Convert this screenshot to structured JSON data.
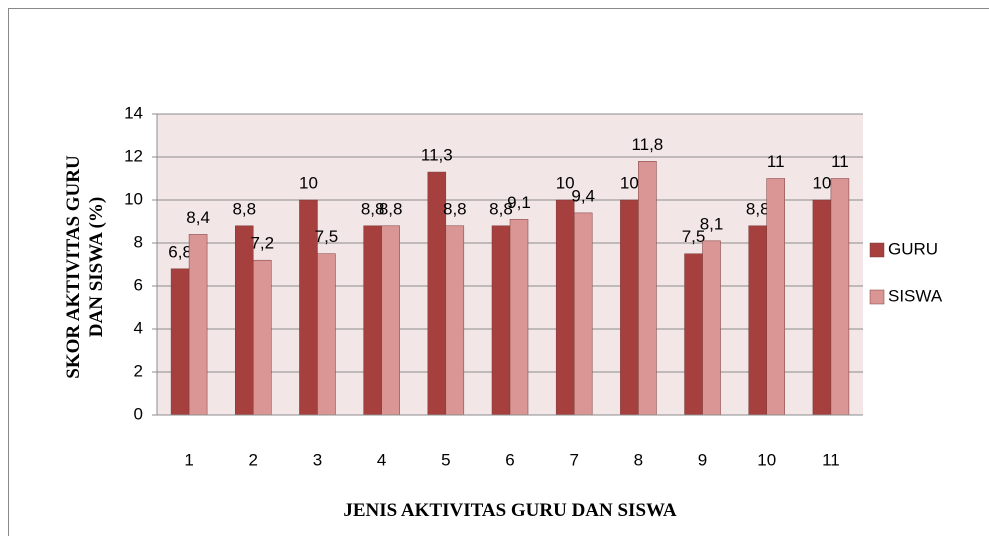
{
  "chart_data": {
    "type": "bar",
    "categories": [
      "1",
      "2",
      "3",
      "4",
      "5",
      "6",
      "7",
      "8",
      "9",
      "10",
      "11"
    ],
    "series": [
      {
        "name": "GURU",
        "color": "#a5403e",
        "values": [
          6.8,
          8.8,
          10,
          8.8,
          11.3,
          8.8,
          10,
          10,
          7.5,
          8.8,
          10
        ],
        "value_labels": [
          "6,8",
          "8,8",
          "10",
          "8,8",
          "11,3",
          "8,8",
          "10",
          "10",
          "7,5",
          "8,8",
          "10"
        ]
      },
      {
        "name": "SISWA",
        "color": "#d99694",
        "values": [
          8.4,
          7.2,
          7.5,
          8.8,
          8.8,
          9.1,
          9.4,
          11.8,
          8.1,
          11,
          11
        ],
        "value_labels": [
          "8,4",
          "7,2",
          "7,5",
          "8,8",
          "8,8",
          "9,1",
          "9,4",
          "11,8",
          "8,1",
          "11",
          "11"
        ]
      }
    ],
    "x_label": "JENIS AKTIVITAS GURU DAN SISWA",
    "y_label": "SKOR AKTIVITAS GURU DAN SISWA (%)",
    "ylim": [
      0,
      14
    ],
    "yticks": [
      0,
      2,
      4,
      6,
      8,
      10,
      12,
      14
    ],
    "grid": true,
    "legend": "right",
    "plot_background": "#f2e6e6"
  }
}
